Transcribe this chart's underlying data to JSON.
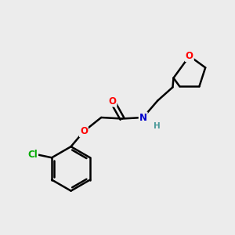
{
  "bg_color": "#ececec",
  "bond_color": "#000000",
  "bond_width": 1.8,
  "atom_colors": {
    "O": "#ff0000",
    "N": "#0000cc",
    "Cl": "#00aa00",
    "H": "#4a9a9a",
    "C": "#000000"
  },
  "font_size": 8.5,
  "fig_width": 3.0,
  "fig_height": 3.0,
  "dpi": 100
}
